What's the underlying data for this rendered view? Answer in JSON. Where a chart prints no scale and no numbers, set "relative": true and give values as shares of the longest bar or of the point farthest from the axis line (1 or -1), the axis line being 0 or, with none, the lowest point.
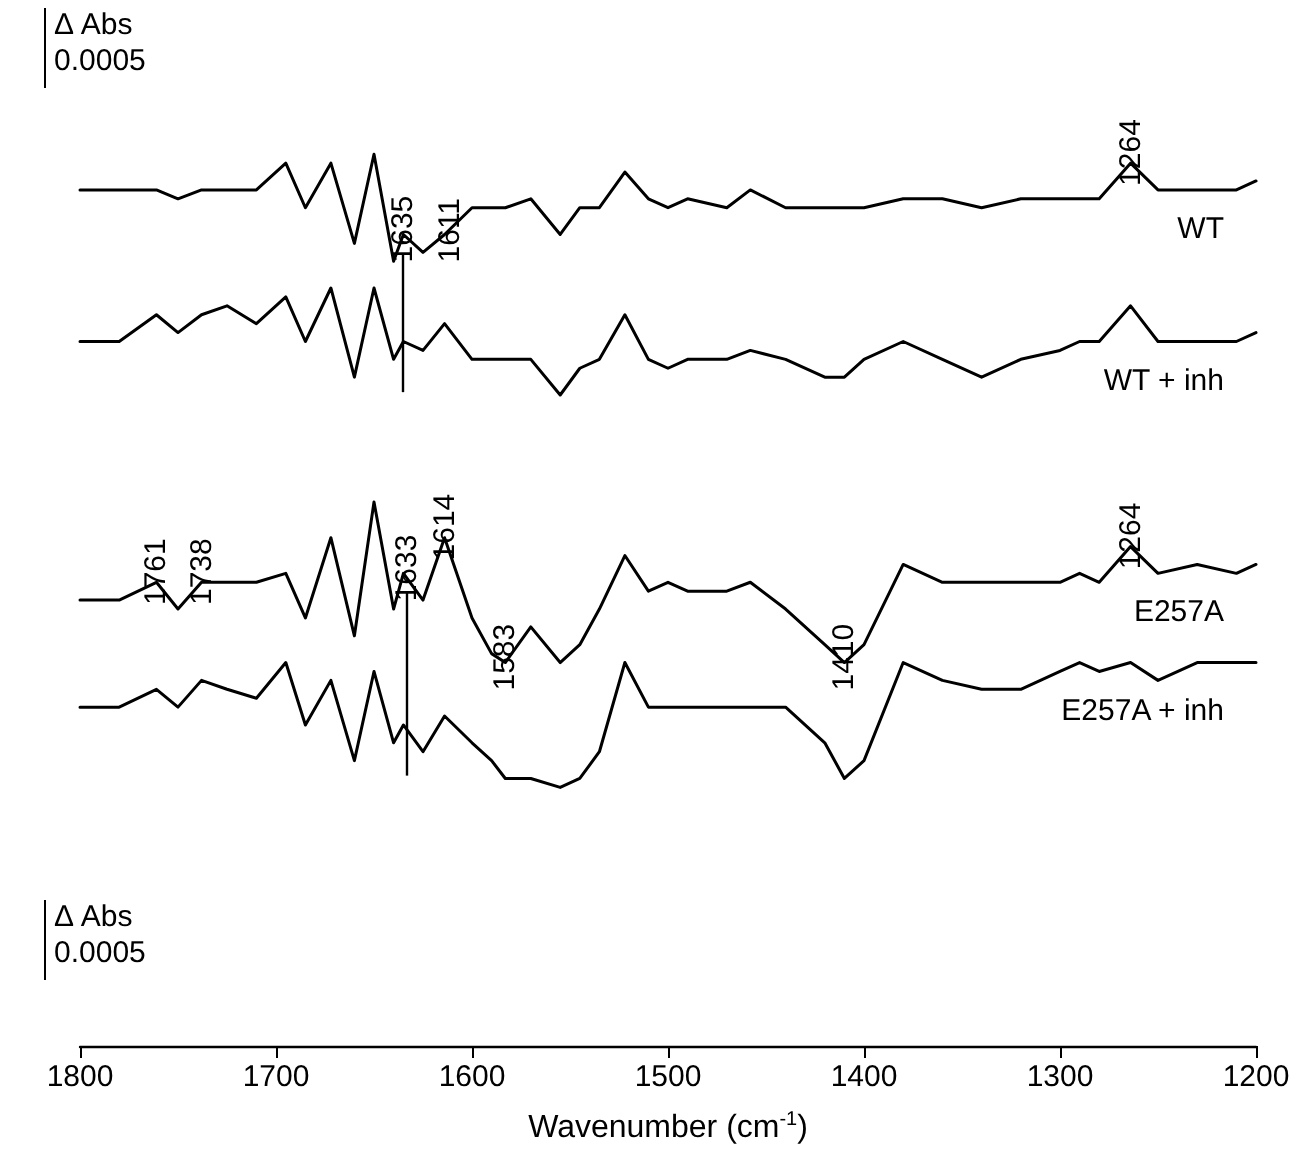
{
  "chart_data": {
    "type": "line",
    "relative": true,
    "xlabel": "Wavenumber (cm$^{-1}$)",
    "x": [
      1800,
      1780,
      1761,
      1750,
      1738,
      1725,
      1710,
      1695,
      1685,
      1672,
      1660,
      1650,
      1640,
      1635,
      1625,
      1614,
      1600,
      1590,
      1583,
      1570,
      1555,
      1545,
      1535,
      1522,
      1510,
      1500,
      1490,
      1470,
      1458,
      1440,
      1420,
      1410,
      1400,
      1380,
      1360,
      1340,
      1320,
      1300,
      1290,
      1280,
      1264,
      1250,
      1230,
      1210,
      1200
    ],
    "xlim": [
      1800,
      1200
    ],
    "xticks": [
      1800,
      1700,
      1600,
      1500,
      1400,
      1300,
      1200
    ],
    "series": [
      {
        "name": "WT",
        "color": "#000000",
        "values": [
          0.96,
          0.96,
          0.96,
          0.95,
          0.96,
          0.96,
          0.96,
          0.99,
          0.94,
          0.99,
          0.9,
          1,
          0.88,
          0.91,
          0.89,
          0.91,
          0.94,
          0.94,
          0.94,
          0.95,
          0.91,
          0.94,
          0.94,
          0.98,
          0.95,
          0.94,
          0.95,
          0.94,
          0.96,
          0.94,
          0.94,
          0.94,
          0.94,
          0.95,
          0.95,
          0.94,
          0.95,
          0.95,
          0.95,
          0.95,
          0.99,
          0.96,
          0.96,
          0.96,
          0.97
        ]
      },
      {
        "name": "WT + inh",
        "color": "#000000",
        "values": [
          0.79,
          0.79,
          0.82,
          0.8,
          0.82,
          0.83,
          0.81,
          0.84,
          0.79,
          0.85,
          0.75,
          0.85,
          0.77,
          0.79,
          0.78,
          0.81,
          0.77,
          0.77,
          0.77,
          0.77,
          0.73,
          0.76,
          0.77,
          0.82,
          0.77,
          0.76,
          0.77,
          0.77,
          0.78,
          0.77,
          0.75,
          0.75,
          0.77,
          0.79,
          0.77,
          0.75,
          0.77,
          0.78,
          0.79,
          0.79,
          0.83,
          0.79,
          0.79,
          0.79,
          0.8
        ]
      },
      {
        "name": "E257A",
        "color": "#000000",
        "values": [
          0.5,
          0.5,
          0.52,
          0.49,
          0.52,
          0.52,
          0.52,
          0.53,
          0.48,
          0.57,
          0.46,
          0.61,
          0.49,
          0.53,
          0.5,
          0.57,
          0.48,
          0.44,
          0.43,
          0.47,
          0.43,
          0.45,
          0.49,
          0.55,
          0.51,
          0.52,
          0.51,
          0.51,
          0.52,
          0.49,
          0.45,
          0.43,
          0.45,
          0.54,
          0.52,
          0.52,
          0.52,
          0.52,
          0.53,
          0.52,
          0.56,
          0.53,
          0.54,
          0.53,
          0.54
        ]
      },
      {
        "name": "E257A + inh",
        "color": "#000000",
        "values": [
          0.38,
          0.38,
          0.4,
          0.38,
          0.41,
          0.4,
          0.39,
          0.43,
          0.36,
          0.41,
          0.32,
          0.42,
          0.34,
          0.36,
          0.33,
          0.37,
          0.34,
          0.32,
          0.3,
          0.3,
          0.29,
          0.3,
          0.33,
          0.43,
          0.38,
          0.38,
          0.38,
          0.38,
          0.38,
          0.38,
          0.34,
          0.3,
          0.32,
          0.43,
          0.41,
          0.4,
          0.4,
          0.42,
          0.43,
          0.42,
          0.43,
          0.41,
          0.43,
          0.43,
          0.43
        ]
      }
    ],
    "ref_lines": [
      {
        "axis": "x",
        "value": 1635
      },
      {
        "axis": "x",
        "value": 1633
      }
    ],
    "annotations": [
      {
        "text": "1635",
        "x": 1635,
        "y": 0.91
      },
      {
        "text": "1611",
        "x": 1611,
        "y": 0.91
      },
      {
        "text": "1264",
        "x": 1264,
        "y": 0.99
      },
      {
        "text": "1761",
        "x": 1761,
        "y": 0.52
      },
      {
        "text": "1738",
        "x": 1738,
        "y": 0.52
      },
      {
        "text": "1633",
        "x": 1633,
        "y": 0.53
      },
      {
        "text": "1614",
        "x": 1614,
        "y": 0.57
      },
      {
        "text": "1264",
        "x": 1264,
        "y": 0.56
      },
      {
        "text": "1583",
        "x": 1583,
        "y": 0.43
      },
      {
        "text": "1410",
        "x": 1410,
        "y": 0.43
      },
      "Δ Abs 0.0005",
      "Δ Abs 0.0005"
    ],
    "grid": false,
    "legend": false,
    "marker": "none",
    "line_style": "solid"
  }
}
